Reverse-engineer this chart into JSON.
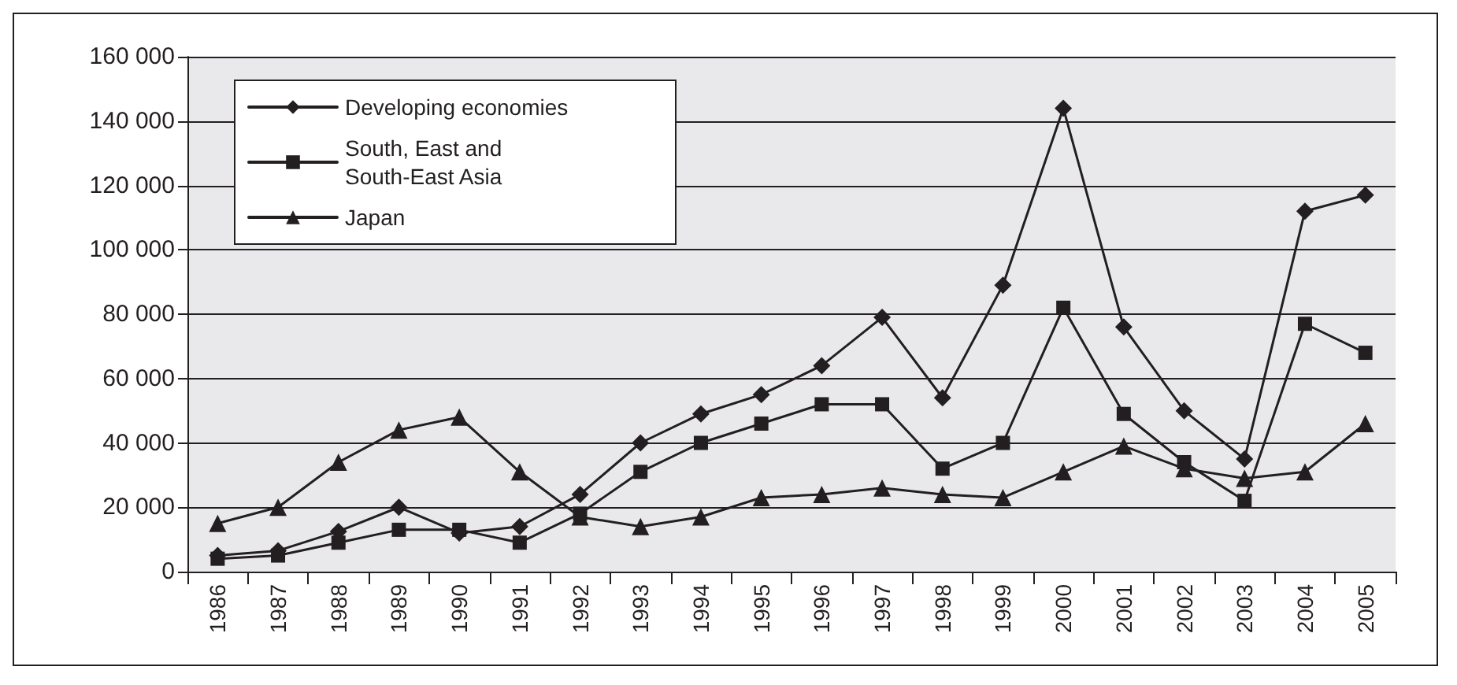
{
  "chart_data": {
    "type": "line",
    "categories": [
      "1986",
      "1987",
      "1988",
      "1989",
      "1990",
      "1991",
      "1992",
      "1993",
      "1994",
      "1995",
      "1996",
      "1997",
      "1998",
      "1999",
      "2000",
      "2001",
      "2002",
      "2003",
      "2004",
      "2005"
    ],
    "series": [
      {
        "name": "Developing economies",
        "color": "#231f20",
        "marker": "diamond",
        "values": [
          5000,
          6500,
          12500,
          20000,
          12000,
          14000,
          24000,
          40000,
          49000,
          55000,
          64000,
          79000,
          54000,
          89000,
          144000,
          76000,
          50000,
          35000,
          112000,
          117000
        ]
      },
      {
        "name": "South, East and South-East Asia",
        "color": "#231f20",
        "marker": "square",
        "values": [
          4000,
          5000,
          9000,
          13000,
          13000,
          9000,
          18000,
          31000,
          40000,
          46000,
          52000,
          52000,
          32000,
          40000,
          82000,
          49000,
          34000,
          22000,
          77000,
          68000
        ]
      },
      {
        "name": "Japan",
        "color": "#231f20",
        "marker": "triangle",
        "values": [
          15000,
          20000,
          34000,
          44000,
          48000,
          31000,
          17000,
          14000,
          17000,
          23000,
          24000,
          26000,
          24000,
          23000,
          31000,
          39000,
          32000,
          29000,
          31000,
          46000
        ]
      }
    ],
    "ylim": [
      0,
      160000
    ],
    "yticks": [
      0,
      {
        "value": 20000,
        "label": "20 000"
      },
      {
        "value": 40000,
        "label": "40 000"
      },
      {
        "value": 60000,
        "label": "60 000"
      },
      {
        "value": 80000,
        "label": "80 000"
      },
      {
        "value": 100000,
        "label": "100 000"
      },
      {
        "value": 120000,
        "label": "120 000"
      },
      {
        "value": 140000,
        "label": "140 000"
      },
      {
        "value": 160000,
        "label": "160 000"
      }
    ],
    "grid": "y",
    "legend": "top left",
    "line_style": "solid"
  }
}
